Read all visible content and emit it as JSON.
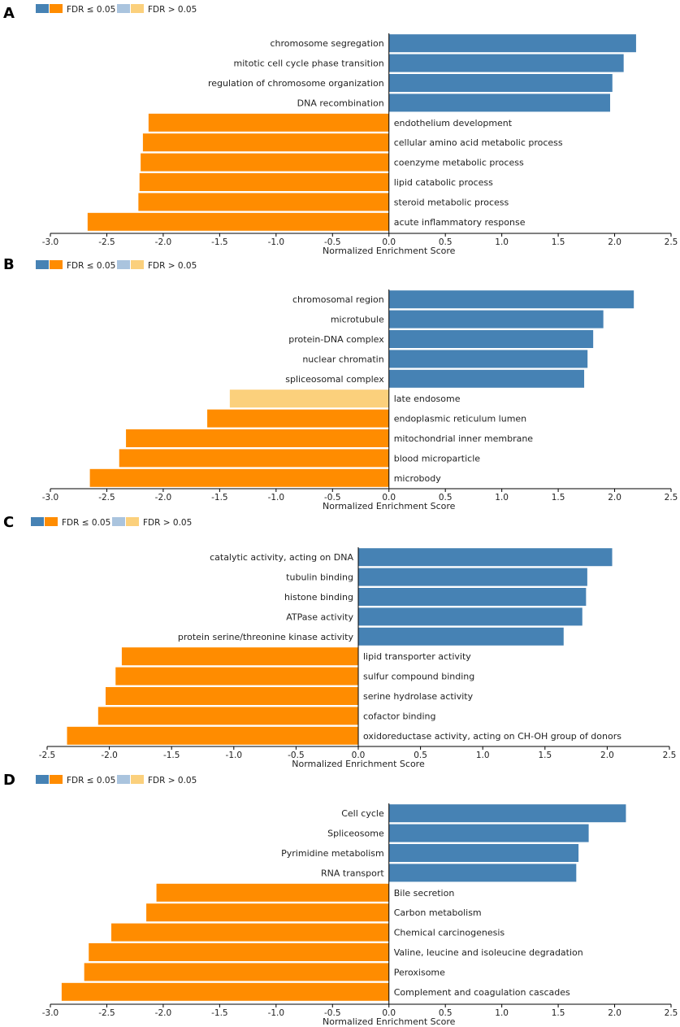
{
  "colors": {
    "pos_sig": "#4682b4",
    "neg_sig": "#ff8c00",
    "pos_nonsig": "#aac4de",
    "neg_nonsig": "#fbd07c",
    "axis": "#000000"
  },
  "chart_data": [
    {
      "type": "bar",
      "orientation": "horizontal",
      "panel": "A",
      "legend": {
        "sig": "FDR ≤ 0.05",
        "nonsig": "FDR > 0.05"
      },
      "xlabel": "Normalized Enrichment Score",
      "xlim": [
        -3.0,
        2.5
      ],
      "xticks": [
        -3.0,
        -2.5,
        -2.0,
        -1.5,
        -1.0,
        -0.5,
        0.0,
        0.5,
        1.0,
        1.5,
        2.0,
        2.5
      ],
      "tick_labels": [
        "-3.0",
        "-2.5",
        "-2.0",
        "-1.5",
        "-1.0",
        "-0.5",
        "0.0",
        "0.5",
        "1.0",
        "1.5",
        "2.0",
        "2.5"
      ],
      "categories": [
        "chromosome segregation",
        "mitotic cell cycle phase transition",
        "regulation of chromosome organization",
        "DNA recombination",
        "endothelium development",
        "cellular amino acid metabolic process",
        "coenzyme metabolic process",
        "lipid catabolic process",
        "steroid metabolic process",
        "acute inflammatory response"
      ],
      "values": [
        2.19,
        2.08,
        1.98,
        1.96,
        -2.13,
        -2.18,
        -2.2,
        -2.21,
        -2.22,
        -2.67
      ],
      "significant": [
        true,
        true,
        true,
        true,
        true,
        true,
        true,
        true,
        true,
        true
      ]
    },
    {
      "type": "bar",
      "orientation": "horizontal",
      "panel": "B",
      "legend": {
        "sig": "FDR ≤ 0.05",
        "nonsig": "FDR > 0.05"
      },
      "xlabel": "Normalized Enrichment Score",
      "xlim": [
        -3.0,
        2.5
      ],
      "xticks": [
        -3.0,
        -2.5,
        -2.0,
        -1.5,
        -1.0,
        -0.5,
        0.0,
        0.5,
        1.0,
        1.5,
        2.0,
        2.5
      ],
      "tick_labels": [
        "-3.0",
        "-2.5",
        "-2.0",
        "-1.5",
        "-1.0",
        "-0.5",
        "0.0",
        "0.5",
        "1.0",
        "1.5",
        "2.0",
        "2.5"
      ],
      "categories": [
        "chromosomal region",
        "microtubule",
        "protein-DNA complex",
        "nuclear chromatin",
        "spliceosomal complex",
        "late endosome",
        "endoplasmic reticulum lumen",
        "mitochondrial inner membrane",
        "blood microparticle",
        "microbody"
      ],
      "values": [
        2.17,
        1.9,
        1.81,
        1.76,
        1.73,
        -1.41,
        -1.61,
        -2.33,
        -2.39,
        -2.65
      ],
      "significant": [
        true,
        true,
        true,
        true,
        true,
        false,
        true,
        true,
        true,
        true
      ]
    },
    {
      "type": "bar",
      "orientation": "horizontal",
      "panel": "C",
      "legend": {
        "sig": "FDR ≤ 0.05",
        "nonsig": "FDR > 0.05"
      },
      "xlabel": "Normalized Enrichment Score",
      "xlim": [
        -2.5,
        2.5
      ],
      "xticks": [
        -2.5,
        -2.0,
        -1.5,
        -1.0,
        -0.5,
        0.0,
        0.5,
        1.0,
        1.5,
        2.0,
        2.5
      ],
      "tick_labels": [
        "-2.5",
        "-2.0",
        "-1.5",
        "-1.0",
        "-0.5",
        "0.0",
        "0.5",
        "1.0",
        "1.5",
        "2.0",
        "2.5"
      ],
      "categories": [
        "catalytic activity, acting on DNA",
        "tubulin binding",
        "histone binding",
        "ATPase activity",
        "protein serine/threonine kinase activity",
        "lipid transporter activity",
        "sulfur compound binding",
        "serine hydrolase activity",
        "cofactor binding",
        "oxidoreductase activity, acting on CH-OH group of donors"
      ],
      "values": [
        2.04,
        1.84,
        1.83,
        1.8,
        1.65,
        -1.9,
        -1.95,
        -2.03,
        -2.09,
        -2.34
      ],
      "significant": [
        true,
        true,
        true,
        true,
        true,
        true,
        true,
        true,
        true,
        true
      ]
    },
    {
      "type": "bar",
      "orientation": "horizontal",
      "panel": "D",
      "legend": {
        "sig": "FDR ≤ 0.05",
        "nonsig": "FDR > 0.05"
      },
      "xlabel": "Normalized Enrichment Score",
      "xlim": [
        -3.0,
        2.5
      ],
      "xticks": [
        -3.0,
        -2.5,
        -2.0,
        -1.5,
        -1.0,
        -0.5,
        0.0,
        0.5,
        1.0,
        1.5,
        2.0,
        2.5
      ],
      "tick_labels": [
        "-3.0",
        "-2.5",
        "-2.0",
        "-1.5",
        "-1.0",
        "-0.5",
        "0.0",
        "0.5",
        "1.0",
        "1.5",
        "2.0",
        "2.5"
      ],
      "categories": [
        "Cell cycle",
        "Spliceosome",
        "Pyrimidine metabolism",
        "RNA transport",
        "Bile secretion",
        "Carbon metabolism",
        "Chemical carcinogenesis",
        "Valine, leucine and isoleucine degradation",
        "Peroxisome",
        "Complement and coagulation cascades"
      ],
      "values": [
        2.1,
        1.77,
        1.68,
        1.66,
        -2.06,
        -2.15,
        -2.46,
        -2.66,
        -2.7,
        -2.9
      ],
      "significant": [
        true,
        true,
        true,
        true,
        true,
        true,
        true,
        true,
        true,
        true
      ]
    }
  ]
}
